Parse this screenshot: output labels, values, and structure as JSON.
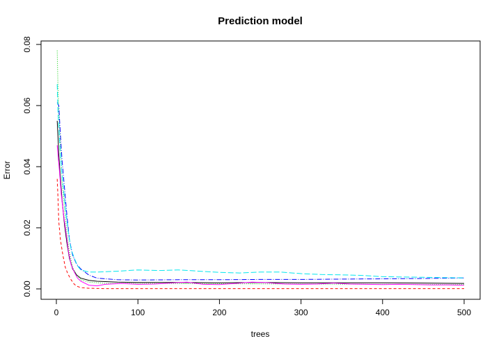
{
  "chart_data": {
    "type": "line",
    "title": "Prediction model",
    "xlabel": "trees",
    "ylabel": "Error",
    "xlim": [
      0,
      500
    ],
    "ylim": [
      0,
      0.08
    ],
    "x_ticks": [
      0,
      100,
      200,
      300,
      400,
      500
    ],
    "x_tick_labels": [
      "0",
      "100",
      "200",
      "300",
      "400",
      "500"
    ],
    "y_ticks": [
      0.0,
      0.02,
      0.04,
      0.06,
      0.08
    ],
    "y_tick_labels": [
      "0.00",
      "0.02",
      "0.04",
      "0.06",
      "0.08"
    ],
    "grid": false,
    "legend": "none",
    "series": [
      {
        "color": "#000000",
        "dash": "",
        "points": [
          [
            1,
            0.055
          ],
          [
            2,
            0.05
          ],
          [
            3,
            0.044
          ],
          [
            5,
            0.036
          ],
          [
            7,
            0.029
          ],
          [
            10,
            0.021
          ],
          [
            13,
            0.015
          ],
          [
            16,
            0.01
          ],
          [
            20,
            0.0065
          ],
          [
            25,
            0.0045
          ],
          [
            30,
            0.0035
          ],
          [
            40,
            0.0028
          ],
          [
            50,
            0.0025
          ],
          [
            75,
            0.0022
          ],
          [
            100,
            0.0021
          ],
          [
            150,
            0.0021
          ],
          [
            200,
            0.002
          ],
          [
            250,
            0.0021
          ],
          [
            300,
            0.002
          ],
          [
            350,
            0.002
          ],
          [
            400,
            0.002
          ],
          [
            450,
            0.0019
          ],
          [
            500,
            0.0018
          ]
        ]
      },
      {
        "color": "#ff0000",
        "dash": "4,3",
        "points": [
          [
            1,
            0.036
          ],
          [
            2,
            0.03
          ],
          [
            3,
            0.022
          ],
          [
            5,
            0.016
          ],
          [
            8,
            0.011
          ],
          [
            11,
            0.007
          ],
          [
            14,
            0.005
          ],
          [
            18,
            0.003
          ],
          [
            22,
            0.0015
          ],
          [
            26,
            0.0008
          ],
          [
            30,
            0.0004
          ],
          [
            40,
            0.0002
          ],
          [
            60,
            0.0001
          ],
          [
            100,
            0.0001
          ],
          [
            200,
            0.0001
          ],
          [
            300,
            0.0001
          ],
          [
            400,
            0.0001
          ],
          [
            500,
            0.0001
          ]
        ]
      },
      {
        "color": "#00cd00",
        "dash": "1,2",
        "points": [
          [
            1,
            0.078
          ],
          [
            2,
            0.066
          ],
          [
            3,
            0.058
          ],
          [
            5,
            0.046
          ],
          [
            7,
            0.036
          ],
          [
            10,
            0.026
          ],
          [
            13,
            0.018
          ],
          [
            16,
            0.012
          ],
          [
            20,
            0.007
          ],
          [
            25,
            0.0045
          ],
          [
            30,
            0.003
          ],
          [
            40,
            0.0022
          ],
          [
            60,
            0.0018
          ],
          [
            100,
            0.0018
          ],
          [
            200,
            0.0017
          ],
          [
            300,
            0.0016
          ],
          [
            400,
            0.0015
          ],
          [
            500,
            0.0014
          ]
        ]
      },
      {
        "color": "#0000ff",
        "dash": "7,2,1,2",
        "points": [
          [
            1,
            0.061
          ],
          [
            3,
            0.06
          ],
          [
            5,
            0.05
          ],
          [
            7,
            0.042
          ],
          [
            10,
            0.033
          ],
          [
            13,
            0.024
          ],
          [
            16,
            0.016
          ],
          [
            20,
            0.011
          ],
          [
            25,
            0.008
          ],
          [
            30,
            0.0065
          ],
          [
            40,
            0.0045
          ],
          [
            50,
            0.0035
          ],
          [
            75,
            0.003
          ],
          [
            100,
            0.0029
          ],
          [
            150,
            0.003
          ],
          [
            200,
            0.003
          ],
          [
            250,
            0.0031
          ],
          [
            300,
            0.0031
          ],
          [
            350,
            0.0032
          ],
          [
            400,
            0.0033
          ],
          [
            450,
            0.0034
          ],
          [
            500,
            0.0036
          ]
        ]
      },
      {
        "color": "#00e5ee",
        "dash": "8,3",
        "points": [
          [
            1,
            0.067
          ],
          [
            2,
            0.058
          ],
          [
            4,
            0.048
          ],
          [
            6,
            0.04
          ],
          [
            9,
            0.032
          ],
          [
            12,
            0.024
          ],
          [
            15,
            0.018
          ],
          [
            18,
            0.013
          ],
          [
            22,
            0.01
          ],
          [
            26,
            0.0075
          ],
          [
            30,
            0.0062
          ],
          [
            40,
            0.0055
          ],
          [
            50,
            0.0055
          ],
          [
            75,
            0.0058
          ],
          [
            100,
            0.0062
          ],
          [
            125,
            0.006
          ],
          [
            150,
            0.0062
          ],
          [
            175,
            0.0058
          ],
          [
            200,
            0.0054
          ],
          [
            225,
            0.0052
          ],
          [
            250,
            0.0055
          ],
          [
            275,
            0.0055
          ],
          [
            300,
            0.005
          ],
          [
            325,
            0.0047
          ],
          [
            350,
            0.0046
          ],
          [
            375,
            0.0044
          ],
          [
            400,
            0.004
          ],
          [
            450,
            0.0038
          ],
          [
            500,
            0.0036
          ]
        ]
      },
      {
        "color": "#ff00ff",
        "dash": "",
        "points": [
          [
            1,
            0.047
          ],
          [
            2,
            0.044
          ],
          [
            4,
            0.038
          ],
          [
            6,
            0.031
          ],
          [
            9,
            0.024
          ],
          [
            12,
            0.018
          ],
          [
            15,
            0.012
          ],
          [
            18,
            0.008
          ],
          [
            22,
            0.0055
          ],
          [
            26,
            0.0035
          ],
          [
            30,
            0.0025
          ],
          [
            40,
            0.0012
          ],
          [
            50,
            0.001
          ],
          [
            60,
            0.0015
          ],
          [
            80,
            0.0018
          ],
          [
            100,
            0.0015
          ],
          [
            120,
            0.0016
          ],
          [
            140,
            0.0019
          ],
          [
            160,
            0.0022
          ],
          [
            180,
            0.0015
          ],
          [
            200,
            0.0014
          ],
          [
            220,
            0.0018
          ],
          [
            240,
            0.0022
          ],
          [
            260,
            0.002
          ],
          [
            280,
            0.0016
          ],
          [
            300,
            0.0015
          ],
          [
            320,
            0.0016
          ],
          [
            340,
            0.0019
          ],
          [
            360,
            0.0016
          ],
          [
            380,
            0.0015
          ],
          [
            400,
            0.0014
          ],
          [
            420,
            0.0015
          ],
          [
            440,
            0.0014
          ],
          [
            460,
            0.0013
          ],
          [
            480,
            0.0013
          ],
          [
            500,
            0.0012
          ]
        ]
      }
    ]
  }
}
